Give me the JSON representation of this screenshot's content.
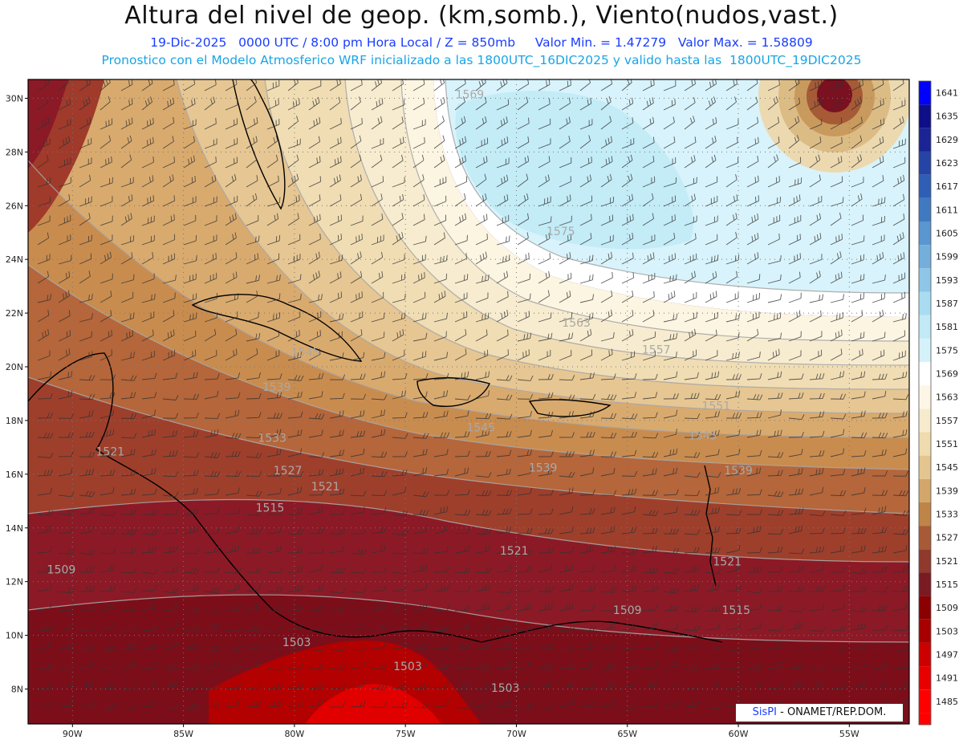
{
  "header": {
    "title": "Altura del nivel de geop. (km,somb.), Viento(nudos,vast.)",
    "subtitle1": "19-Dic-2025   0000 UTC / 8:00 pm Hora Local / Z = 850mb     Valor Min. = 1.47279   Valor Max. = 1.58809",
    "subtitle2": "Pronostico con el Modelo Atmosferico WRF inicializado a las 1800UTC_16DIC2025 y valido hasta las  1800UTC_19DIC2025"
  },
  "credit": {
    "brand": "SisPI",
    "text": " - ONAMET/REP.DOM."
  },
  "colors": {
    "warm": [
      "#ff0000",
      "#ee0000",
      "#cc0000",
      "#8b0000",
      "#7a1020",
      "#8f2a25",
      "#a14a2e",
      "#b7703f",
      "#c99a5d",
      "#dcbc85",
      "#ecd6a4",
      "#f5e8c6",
      "#fbf3de",
      "#ffffff",
      "#d7f3fb",
      "#c4ecf7",
      "#aee2f2",
      "#97cde9",
      "#7eb6df",
      "#629ad2",
      "#467ec3",
      "#2d60b4",
      "#2340a5",
      "#1a208f",
      "#0e0e80",
      "#0000c8",
      "#0000ff"
    ]
  },
  "colorbar": {
    "labels": [
      "1485",
      "1491",
      "1497",
      "1503",
      "1509",
      "1515",
      "1521",
      "1527",
      "1533",
      "1539",
      "1545",
      "1551",
      "1557",
      "1563",
      "1569",
      "1575",
      "1581",
      "1587",
      "1593",
      "1599",
      "1605",
      "1611",
      "1617",
      "1623",
      "1629",
      "1635",
      "1641"
    ],
    "colors": [
      "#ff0000",
      "#e80000",
      "#cc0000",
      "#a80000",
      "#8b0000",
      "#7a1a22",
      "#8f3a2c",
      "#a65a35",
      "#bf8447",
      "#d3a66b",
      "#e4c58f",
      "#efdbae",
      "#f6ebcc",
      "#fdf6e6",
      "#ffffff",
      "#d5f2fb",
      "#c2eaf6",
      "#a9dcf0",
      "#8ec6e7",
      "#74afdc",
      "#5a96cf",
      "#4179c1",
      "#2f5fb4",
      "#2544a6",
      "#1a2494",
      "#0e0e88",
      "#0000ff"
    ]
  },
  "axes": {
    "lat_labels": [
      "30N",
      "28N",
      "26N",
      "24N",
      "22N",
      "20N",
      "18N",
      "16N",
      "14N",
      "12N",
      "10N",
      "8N"
    ],
    "lat_values": [
      30,
      28,
      26,
      24,
      22,
      20,
      18,
      16,
      14,
      12,
      10,
      8
    ],
    "lon_labels": [
      "90W",
      "85W",
      "80W",
      "75W",
      "70W",
      "65W",
      "60W",
      "55W"
    ],
    "lon_values": [
      -90,
      -85,
      -80,
      -75,
      -70,
      -65,
      -60,
      -55
    ],
    "lon_range": [
      -92,
      -52.3
    ],
    "lat_range": [
      6.7,
      30.7
    ]
  },
  "contour_labels": [
    {
      "text": "1569",
      "lon": -72.1,
      "lat": 30.0
    },
    {
      "text": "1575",
      "lon": -68.0,
      "lat": 24.9
    },
    {
      "text": "1563",
      "lon": -67.3,
      "lat": 21.5
    },
    {
      "text": "1557",
      "lon": -63.7,
      "lat": 20.5
    },
    {
      "text": "1551",
      "lon": -61.0,
      "lat": 18.4
    },
    {
      "text": "1545",
      "lon": -79.5,
      "lat": 20.4
    },
    {
      "text": "1545",
      "lon": -71.6,
      "lat": 17.6
    },
    {
      "text": "1545",
      "lon": -61.6,
      "lat": 17.3
    },
    {
      "text": "1539",
      "lon": -80.8,
      "lat": 19.1
    },
    {
      "text": "1539",
      "lon": -68.8,
      "lat": 16.1
    },
    {
      "text": "1539",
      "lon": -60.0,
      "lat": 16.0
    },
    {
      "text": "1533",
      "lon": -81.0,
      "lat": 17.2
    },
    {
      "text": "1527",
      "lon": -80.3,
      "lat": 16.0
    },
    {
      "text": "1521",
      "lon": -88.3,
      "lat": 16.7
    },
    {
      "text": "1521",
      "lon": -78.6,
      "lat": 15.4
    },
    {
      "text": "1521",
      "lon": -70.1,
      "lat": 13.0
    },
    {
      "text": "1521",
      "lon": -60.5,
      "lat": 12.6
    },
    {
      "text": "1515",
      "lon": -81.1,
      "lat": 14.6
    },
    {
      "text": "1515",
      "lon": -60.1,
      "lat": 10.8
    },
    {
      "text": "1509",
      "lon": -90.5,
      "lat": 12.3
    },
    {
      "text": "1509",
      "lon": -65.0,
      "lat": 10.8
    },
    {
      "text": "1503",
      "lon": -79.9,
      "lat": 9.6
    },
    {
      "text": "1503",
      "lon": -74.9,
      "lat": 8.7
    },
    {
      "text": "1503",
      "lon": -70.5,
      "lat": 7.9
    }
  ]
}
